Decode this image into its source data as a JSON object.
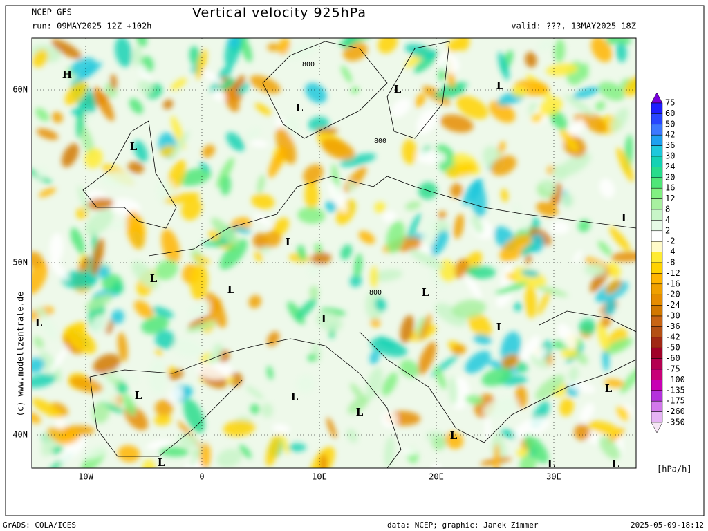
{
  "header": {
    "model": "NCEP GFS",
    "run": "run: 09MAY2025 12Z +102h",
    "title": "Vertical velocity 925hPa",
    "valid": "valid: ???, 13MAY2025 18Z"
  },
  "map": {
    "lat_labels": [
      "60N",
      "50N",
      "40N"
    ],
    "lon_labels": [
      "10W",
      "0",
      "10E",
      "20E",
      "30E"
    ],
    "markers": [
      "H",
      "L",
      "L",
      "L",
      "L",
      "L",
      "L",
      "L",
      "L",
      "L",
      "L",
      "L",
      "L",
      "L",
      "L",
      "L",
      "L",
      "L",
      "L",
      "L",
      "L"
    ],
    "contour_labels": [
      "800",
      "800",
      "800"
    ],
    "copyright": "(c) www.modellzentrale.de"
  },
  "colorbar": {
    "levels": [
      75,
      60,
      50,
      42,
      36,
      30,
      24,
      20,
      16,
      12,
      8,
      4,
      2,
      -2,
      -4,
      -8,
      -12,
      -16,
      -20,
      -24,
      -30,
      -36,
      -42,
      -50,
      -60,
      -75,
      -100,
      -135,
      -175,
      -260,
      -350
    ],
    "colors": [
      "#7800dc",
      "#1e1eff",
      "#2846ff",
      "#3c78ff",
      "#1ea0f0",
      "#1ec8dc",
      "#14d2b4",
      "#28dc8c",
      "#50e678",
      "#82f082",
      "#a8f0a0",
      "#c8f5c8",
      "#e6fae6",
      "#ffffff",
      "#fffac8",
      "#ffeb32",
      "#ffd200",
      "#ffb400",
      "#f0a000",
      "#e68c00",
      "#d27800",
      "#c86414",
      "#b45014",
      "#a02814",
      "#a00028",
      "#b40050",
      "#c80078",
      "#c800b4",
      "#b432dc",
      "#d278eb",
      "#e6b4f5",
      "#f5e6f5"
    ],
    "units": "[hPa/h]"
  },
  "footer": {
    "software": "GrADS: COLA/IGES",
    "credit": "data: NCEP; graphic: Janek Zimmer",
    "timestamp": "2025-05-09-18:12"
  }
}
